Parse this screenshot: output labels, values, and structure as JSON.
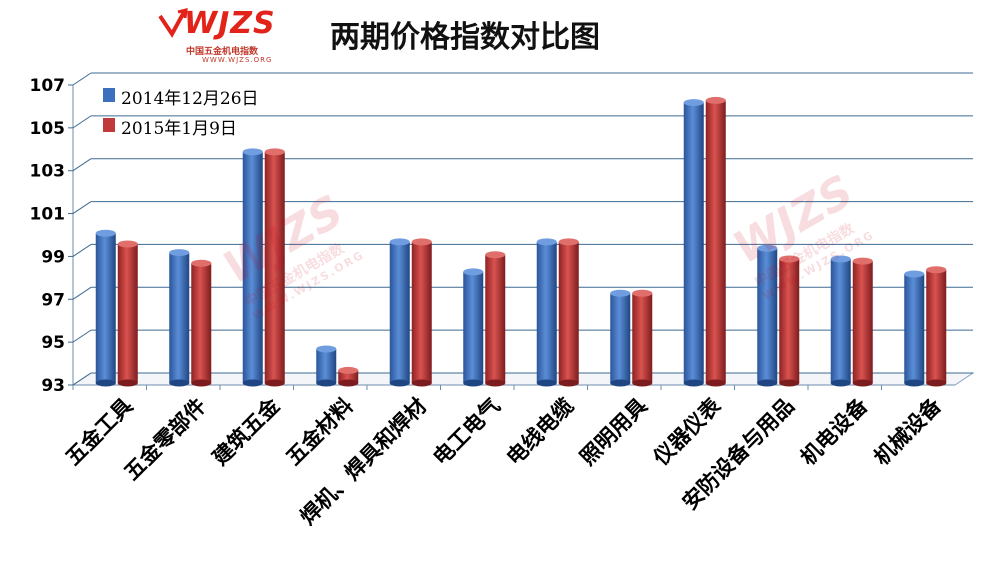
{
  "logo": {
    "text": "WJZS",
    "subtitle": "中国五金机电指数",
    "url": "WWW.WJZS.ORG"
  },
  "chart_data": {
    "type": "bar",
    "title": "两期价格指数对比图",
    "xlabel": "",
    "ylabel": "",
    "ylim": [
      93,
      107
    ],
    "yticks": [
      93,
      95,
      97,
      99,
      101,
      103,
      105,
      107
    ],
    "grid": true,
    "legend_position": "top-left",
    "categories": [
      "五金工具",
      "五金零部件",
      "建筑五金",
      "五金材料",
      "焊机、焊具和焊材",
      "电工电气",
      "电线电缆",
      "照明用具",
      "仪器仪表",
      "安防设备与用品",
      "机电设备",
      "机械设备"
    ],
    "series": [
      {
        "name": "2014年12月26日",
        "color": "#3d6fbf",
        "values": [
          99.8,
          98.9,
          103.6,
          94.4,
          99.4,
          98.0,
          99.4,
          97.0,
          105.9,
          99.1,
          98.6,
          97.9
        ]
      },
      {
        "name": "2015年1月9日",
        "color": "#c0393b",
        "values": [
          99.3,
          98.4,
          103.6,
          93.4,
          99.4,
          98.8,
          99.4,
          97.0,
          106.0,
          98.6,
          98.5,
          98.1
        ]
      }
    ]
  }
}
